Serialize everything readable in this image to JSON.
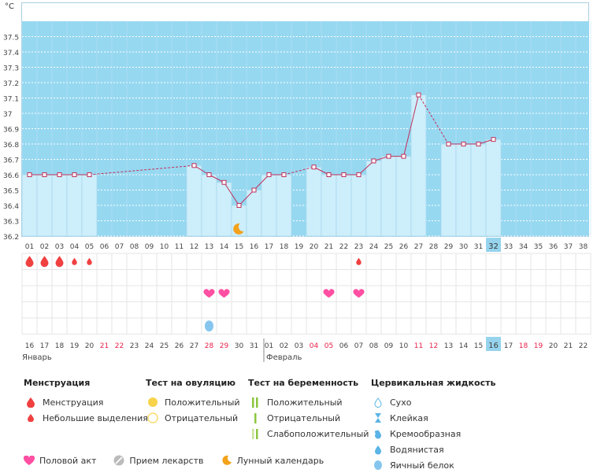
{
  "chart_data": {
    "type": "line",
    "unit_label": "°C",
    "ylim": [
      36.2,
      37.6
    ],
    "y_ticks": [
      "37.5",
      "37.4",
      "37.3",
      "37.2",
      "37.1",
      "37",
      "36.9",
      "36.8",
      "36.7",
      "36.6",
      "36.5",
      "36.4",
      "36.3",
      "36.2"
    ],
    "cycle_days": [
      "01",
      "02",
      "03",
      "04",
      "05",
      "06",
      "07",
      "08",
      "09",
      "10",
      "11",
      "12",
      "13",
      "14",
      "15",
      "16",
      "17",
      "18",
      "19",
      "20",
      "21",
      "22",
      "23",
      "24",
      "25",
      "26",
      "27",
      "28",
      "29",
      "30",
      "31",
      "32",
      "33",
      "34",
      "35",
      "36",
      "37",
      "38"
    ],
    "current_day": "32",
    "temperatures": [
      36.6,
      36.6,
      36.6,
      36.6,
      36.6,
      null,
      null,
      null,
      null,
      null,
      null,
      36.66,
      36.6,
      36.55,
      36.4,
      36.5,
      36.6,
      36.6,
      null,
      36.65,
      36.6,
      36.6,
      36.6,
      36.69,
      36.72,
      36.72,
      37.12,
      null,
      36.8,
      36.8,
      36.8,
      36.83,
      null,
      null,
      null,
      null,
      null,
      null
    ],
    "moon_day": "15",
    "dates": [
      "16",
      "17",
      "18",
      "19",
      "20",
      "21",
      "22",
      "23",
      "24",
      "25",
      "26",
      "27",
      "28",
      "29",
      "30",
      "31",
      "01",
      "02",
      "03",
      "04",
      "05",
      "06",
      "07",
      "08",
      "09",
      "10",
      "11",
      "12",
      "13",
      "14",
      "15",
      "16",
      "17",
      "18",
      "19",
      "20",
      "21",
      "22"
    ],
    "red_dates": [
      5,
      6,
      12,
      13,
      19,
      20,
      26,
      27,
      33,
      34
    ],
    "today_date_index": 31,
    "months": [
      {
        "label": "Январь",
        "start": 0
      },
      {
        "label": "Февраль",
        "start": 16
      }
    ],
    "menstruation": [
      {
        "day": 0,
        "size": "big"
      },
      {
        "day": 1,
        "size": "big"
      },
      {
        "day": 2,
        "size": "big"
      },
      {
        "day": 3,
        "size": "small"
      },
      {
        "day": 4,
        "size": "small"
      },
      {
        "day": 22,
        "size": "small"
      }
    ],
    "intercourse": [
      12,
      13,
      20,
      22
    ],
    "cervical_eggwhite": [
      12
    ]
  },
  "legend": {
    "menstruation": {
      "title": "Менструация",
      "items": [
        "Менструация",
        "Небольшие выделения"
      ]
    },
    "ovulation": {
      "title": "Тест на овуляцию",
      "items": [
        "Положительный",
        "Отрицательный"
      ]
    },
    "pregnancy": {
      "title": "Тест на беременность",
      "items": [
        "Положительный",
        "Отрицательный",
        "Слабоположительный"
      ]
    },
    "cervical": {
      "title": "Цервикальная жидкость",
      "items": [
        "Сухо",
        "Клейкая",
        "Кремообразная",
        "Водянистая",
        "Яичный белок"
      ]
    },
    "bottom": [
      "Половой акт",
      "Прием лекарств",
      "Лунный календарь"
    ]
  },
  "colors": {
    "sky": "#97d8f1",
    "bar": "#cdeefb",
    "line": "#c0305a",
    "heart": "#ff4fa3",
    "drop": "#f04040",
    "moon": "#f3a21c",
    "highlight": "#96d4ee",
    "red_date": "#e8204a"
  }
}
